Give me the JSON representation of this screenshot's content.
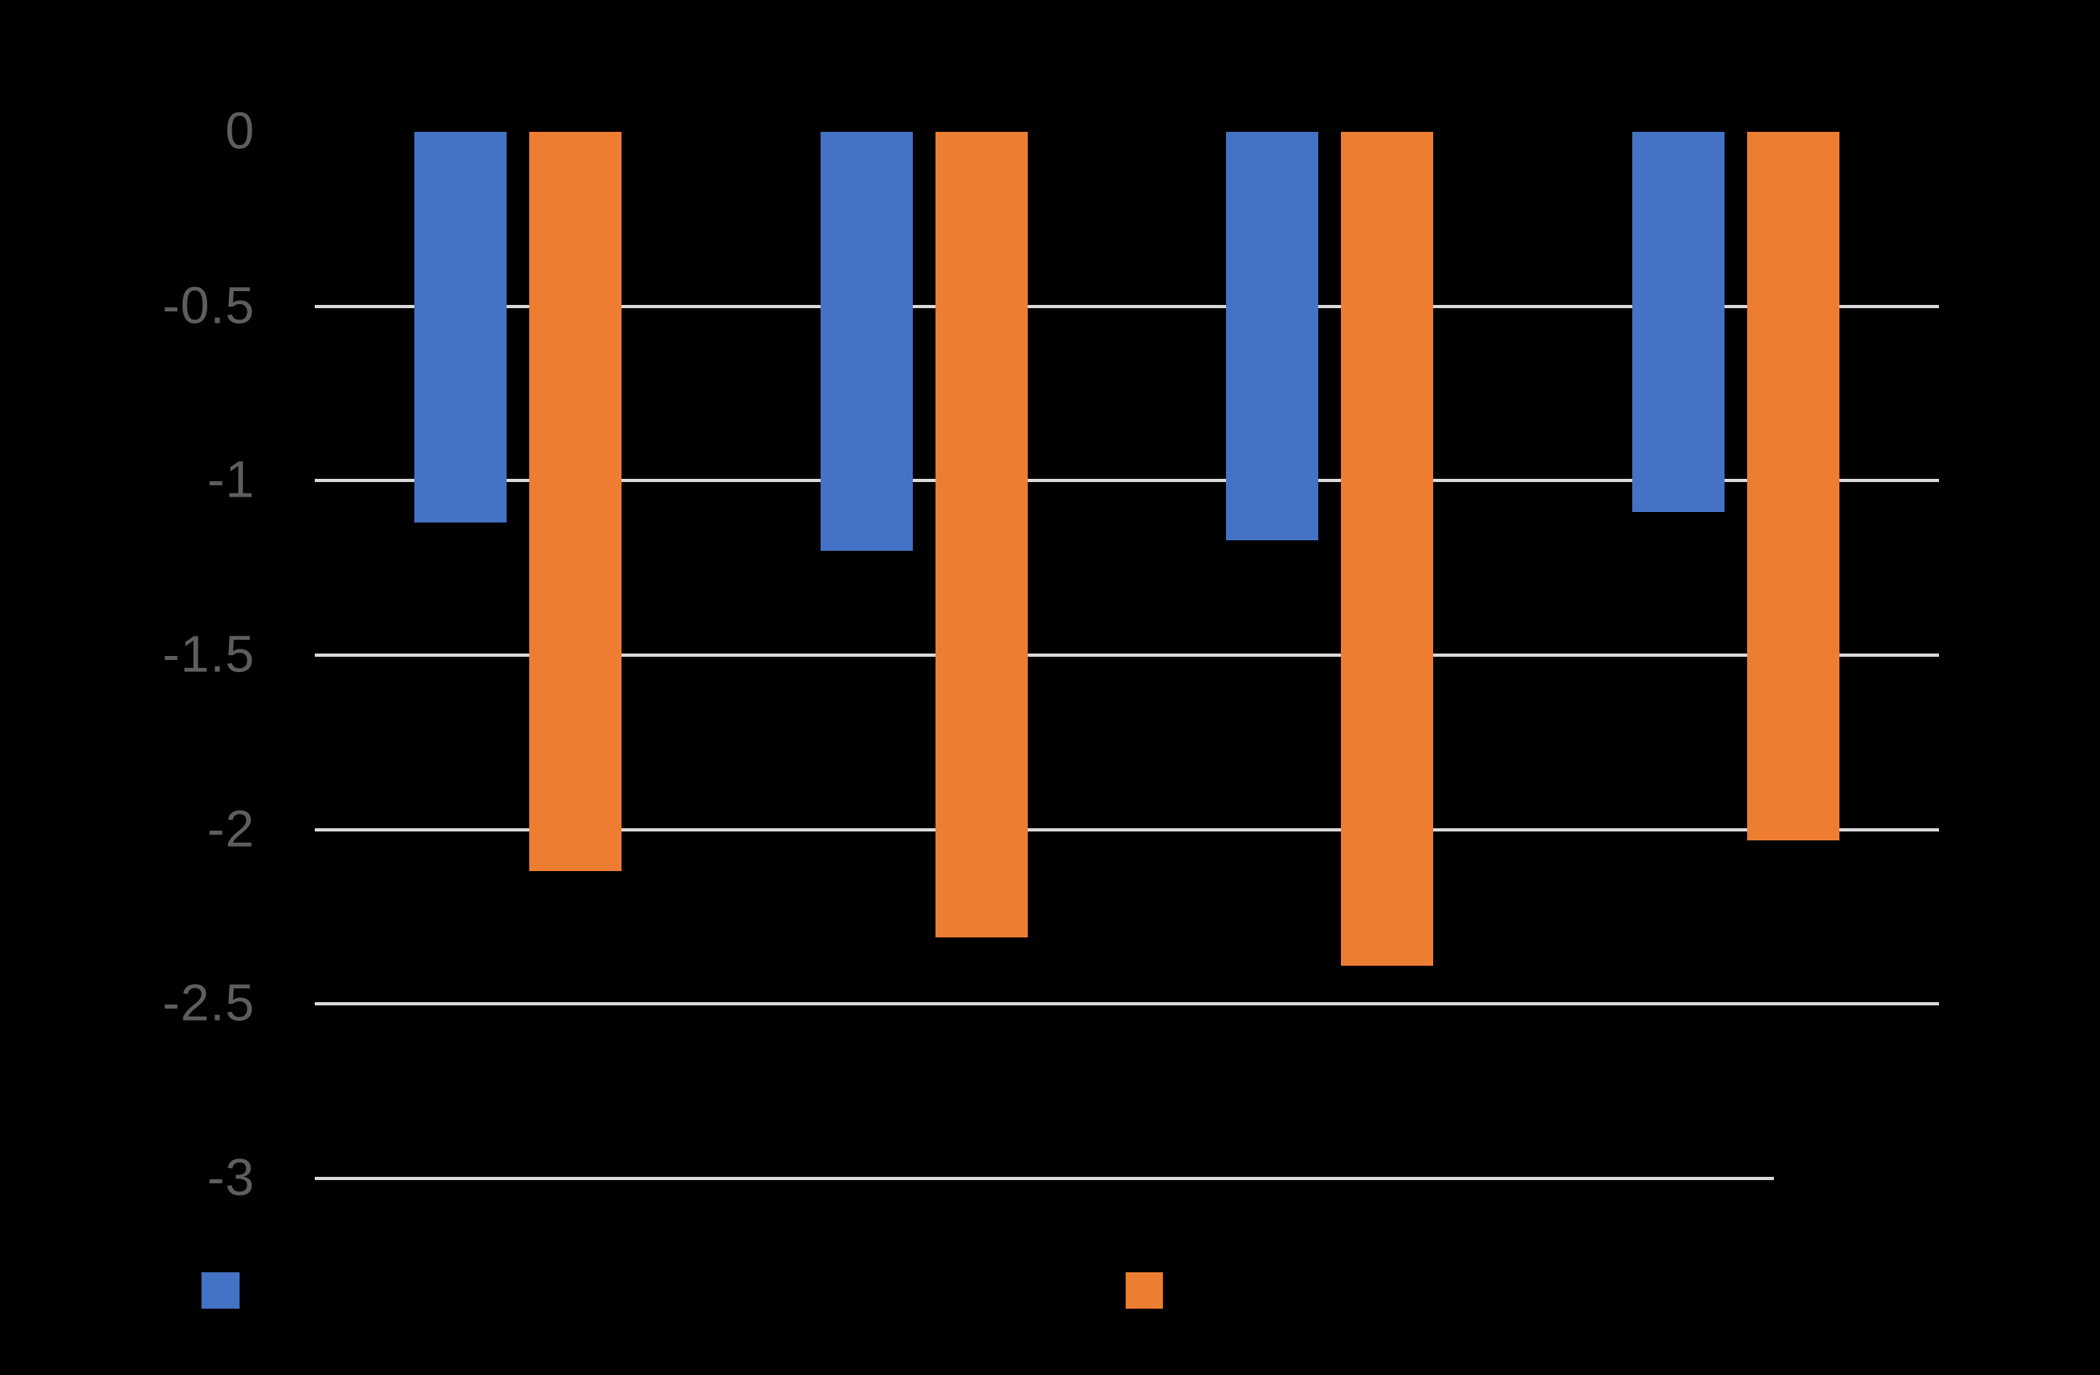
{
  "chart_data": {
    "type": "bar",
    "orientation": "vertical",
    "title": "",
    "xlabel": "",
    "ylabel": "",
    "categories": [
      "",
      "",
      "",
      ""
    ],
    "series": [
      {
        "name": "",
        "color": "#4472C4",
        "values": [
          -1.12,
          -1.2,
          -1.17,
          -1.09
        ]
      },
      {
        "name": "",
        "color": "#ED7D31",
        "values": [
          -2.12,
          -2.31,
          -2.39,
          -2.03
        ]
      }
    ],
    "ylim": [
      -3,
      0
    ],
    "yticks": [
      0,
      -0.5,
      -1,
      -1.5,
      -2,
      -2.5,
      -3
    ],
    "ytick_labels": [
      "0",
      "-0.5",
      "-1",
      "-1.5",
      "-2",
      "-2.5",
      "-3"
    ],
    "grid": true,
    "zero_gridline_drawn": false,
    "gridline_color": "#D9D9D9",
    "axis_label_color": "#5E5E5E",
    "background_color": "#000000",
    "legend_position": "bottom",
    "legend_labels_visible": false
  }
}
